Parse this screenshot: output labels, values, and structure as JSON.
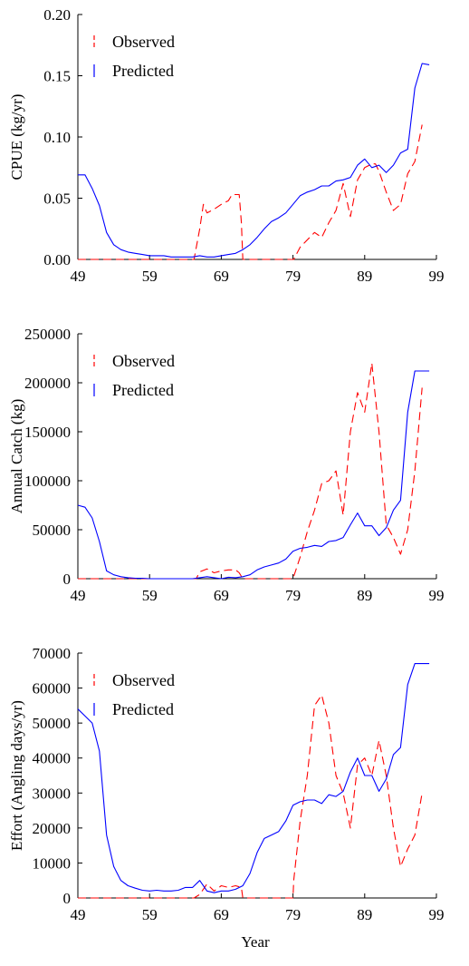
{
  "chart_data": [
    {
      "type": "line",
      "ylabel": "CPUE (kg/yr)",
      "xlabel": "",
      "xlim": [
        49,
        99
      ],
      "ylim": [
        0,
        0.2
      ],
      "x_ticks": [
        "49",
        "59",
        "69",
        "79",
        "89",
        "99"
      ],
      "y_ticks": [
        "0.00",
        "0.05",
        "0.10",
        "0.15",
        "0.20"
      ],
      "legend_position": "top-left",
      "series": [
        {
          "name": "Observed",
          "color": "#ff0000",
          "style": "dashed",
          "x": [
            49,
            55,
            60,
            64,
            65.2,
            66,
            66.5,
            67,
            68,
            69,
            70,
            70.5,
            71,
            71.5,
            71.8,
            72,
            75,
            79,
            79.1,
            80,
            82,
            83,
            84,
            85,
            86,
            87,
            88,
            89,
            90,
            90.5,
            91,
            92,
            93,
            94,
            95,
            96,
            97
          ],
          "values": [
            0,
            0,
            0,
            0,
            0,
            0.025,
            0.045,
            0.038,
            0.041,
            0.045,
            0.048,
            0.053,
            0.053,
            0.053,
            0.03,
            0,
            0,
            0,
            0,
            0.01,
            0.022,
            0.018,
            0.03,
            0.04,
            0.062,
            0.035,
            0.065,
            0.075,
            0.078,
            0.078,
            0.072,
            0.055,
            0.04,
            0.045,
            0.07,
            0.08,
            0.11
          ]
        },
        {
          "name": "Predicted",
          "color": "#0000ff",
          "style": "solid",
          "x": [
            49,
            50,
            51,
            52,
            53,
            54,
            55,
            56,
            57,
            58,
            59,
            60,
            61,
            62,
            63,
            64,
            65,
            66,
            67,
            68,
            69,
            70,
            71,
            72,
            73,
            74,
            75,
            76,
            77,
            78,
            79,
            80,
            81,
            82,
            83,
            84,
            85,
            86,
            87,
            88,
            89,
            90,
            91,
            92,
            93,
            94,
            95,
            96,
            97,
            98
          ],
          "values": [
            0.069,
            0.069,
            0.058,
            0.044,
            0.022,
            0.012,
            0.008,
            0.006,
            0.005,
            0.004,
            0.003,
            0.003,
            0.003,
            0.002,
            0.002,
            0.002,
            0.002,
            0.003,
            0.002,
            0.002,
            0.003,
            0.004,
            0.005,
            0.008,
            0.012,
            0.018,
            0.025,
            0.031,
            0.034,
            0.038,
            0.045,
            0.052,
            0.055,
            0.057,
            0.06,
            0.06,
            0.064,
            0.065,
            0.067,
            0.077,
            0.082,
            0.075,
            0.077,
            0.071,
            0.077,
            0.087,
            0.09,
            0.14,
            0.16,
            0.159
          ]
        }
      ]
    },
    {
      "type": "line",
      "ylabel": "Annual Catch (kg)",
      "xlabel": "",
      "xlim": [
        49,
        99
      ],
      "ylim": [
        0,
        250000
      ],
      "x_ticks": [
        "49",
        "59",
        "69",
        "79",
        "89",
        "99"
      ],
      "y_ticks": [
        "0",
        "50000",
        "100000",
        "150000",
        "200000",
        "250000"
      ],
      "legend_position": "top-left",
      "series": [
        {
          "name": "Observed",
          "color": "#ff0000",
          "style": "dashed",
          "x": [
            49,
            55,
            60,
            64,
            65.5,
            66,
            67,
            68,
            69,
            70,
            71,
            71.5,
            72,
            75,
            79,
            80,
            81,
            82,
            83,
            84,
            85,
            86,
            87,
            88,
            89,
            90,
            91,
            92,
            93,
            94,
            95,
            96,
            97
          ],
          "values": [
            0,
            0,
            0,
            0,
            0,
            7000,
            10000,
            6000,
            8000,
            9000,
            9000,
            6000,
            0,
            0,
            0,
            22000,
            48000,
            70000,
            97000,
            100000,
            110000,
            65000,
            150000,
            190000,
            170000,
            220000,
            150000,
            55000,
            42000,
            25000,
            50000,
            110000,
            195000
          ]
        },
        {
          "name": "Predicted",
          "color": "#0000ff",
          "style": "solid",
          "x": [
            49,
            50,
            51,
            52,
            53,
            54,
            55,
            56,
            57,
            58,
            59,
            60,
            61,
            62,
            63,
            64,
            65,
            66,
            67,
            68,
            69,
            70,
            71,
            72,
            73,
            74,
            75,
            76,
            77,
            78,
            79,
            80,
            81,
            82,
            83,
            84,
            85,
            86,
            87,
            88,
            89,
            90,
            91,
            92,
            93,
            94,
            95,
            96,
            97,
            98
          ],
          "values": [
            75000,
            73000,
            62000,
            38000,
            8000,
            4000,
            2000,
            1000,
            500,
            500,
            0,
            0,
            0,
            0,
            0,
            0,
            0,
            1000,
            2000,
            1000,
            0,
            1500,
            1000,
            2000,
            4000,
            9000,
            12000,
            14000,
            16000,
            20000,
            28000,
            31000,
            32000,
            34000,
            33000,
            38000,
            39000,
            42000,
            55000,
            67000,
            54000,
            54000,
            44000,
            52000,
            70000,
            80000,
            170000,
            212000,
            212000,
            212000
          ]
        }
      ]
    },
    {
      "type": "line",
      "ylabel": "Effort (Angling days/yr)",
      "xlabel": "Year",
      "xlim": [
        49,
        99
      ],
      "ylim": [
        0,
        70000
      ],
      "x_ticks": [
        "49",
        "59",
        "69",
        "79",
        "89",
        "99"
      ],
      "y_ticks": [
        "0",
        "10000",
        "20000",
        "30000",
        "40000",
        "50000",
        "60000",
        "70000"
      ],
      "legend_position": "top-left",
      "series": [
        {
          "name": "Observed",
          "color": "#ff0000",
          "style": "dashed",
          "x": [
            49,
            55,
            60,
            64,
            65.2,
            66,
            67,
            68,
            69,
            70,
            71,
            71.8,
            72,
            75,
            79,
            79.1,
            80,
            81,
            82,
            83,
            84,
            85,
            86,
            87,
            88,
            89,
            90,
            91,
            92,
            93,
            94,
            95,
            96,
            97
          ],
          "values": [
            0,
            0,
            0,
            0,
            0,
            1000,
            4000,
            2000,
            3500,
            3000,
            3500,
            3000,
            0,
            0,
            0,
            5000,
            22000,
            35000,
            55000,
            58000,
            50000,
            35000,
            30000,
            20000,
            38000,
            40000,
            35000,
            45000,
            35000,
            20000,
            9000,
            14000,
            18000,
            30000
          ]
        },
        {
          "name": "Predicted",
          "color": "#0000ff",
          "style": "solid",
          "x": [
            49,
            50,
            51,
            52,
            53,
            54,
            55,
            56,
            57,
            58,
            59,
            60,
            61,
            62,
            63,
            64,
            65,
            66,
            67,
            68,
            69,
            70,
            71,
            72,
            73,
            74,
            75,
            76,
            77,
            78,
            79,
            80,
            81,
            82,
            83,
            84,
            85,
            86,
            87,
            88,
            89,
            90,
            91,
            92,
            93,
            94,
            95,
            96,
            97,
            98
          ],
          "values": [
            54000,
            52000,
            50000,
            42000,
            18000,
            9000,
            5000,
            3500,
            2800,
            2200,
            2000,
            2200,
            2000,
            2000,
            2200,
            3000,
            3000,
            5000,
            2000,
            1500,
            2000,
            2000,
            2500,
            3500,
            7000,
            13000,
            17000,
            18000,
            19000,
            22000,
            26500,
            27500,
            28000,
            28000,
            27000,
            29500,
            29000,
            30500,
            36000,
            40000,
            35000,
            35000,
            30500,
            34000,
            41000,
            43000,
            61000,
            67000,
            67000,
            67000
          ]
        }
      ]
    }
  ]
}
